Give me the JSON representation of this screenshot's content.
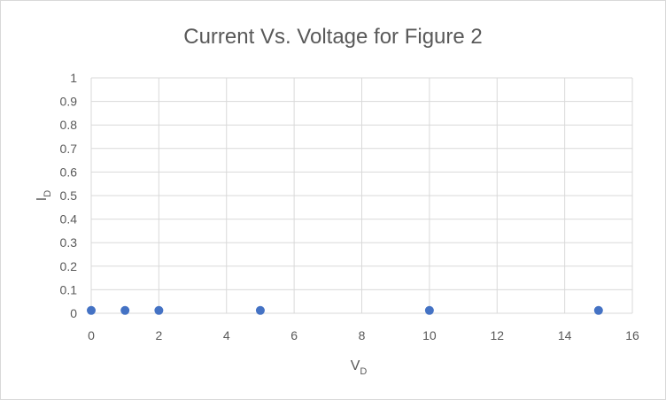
{
  "chart_data": {
    "type": "scatter",
    "title": "Current Vs.  Voltage for Figure 2",
    "xlabel": {
      "main": "V",
      "sub": "D"
    },
    "ylabel": {
      "main": "I",
      "sub": "D"
    },
    "xlim": [
      0,
      16
    ],
    "ylim": [
      0,
      1
    ],
    "xticks": [
      "0",
      "2",
      "4",
      "6",
      "8",
      "10",
      "12",
      "14",
      "16"
    ],
    "yticks": [
      "0",
      "0.1",
      "0.2",
      "0.3",
      "0.4",
      "0.5",
      "0.6",
      "0.7",
      "0.8",
      "0.9",
      "1"
    ],
    "grid": true,
    "legend": "none",
    "series": [
      {
        "color": "#4472c4",
        "points": [
          {
            "x": 0,
            "y": 0.012
          },
          {
            "x": 1,
            "y": 0.012
          },
          {
            "x": 2,
            "y": 0.012
          },
          {
            "x": 5,
            "y": 0.012
          },
          {
            "x": 10,
            "y": 0.012
          },
          {
            "x": 15,
            "y": 0.012
          }
        ]
      }
    ]
  }
}
